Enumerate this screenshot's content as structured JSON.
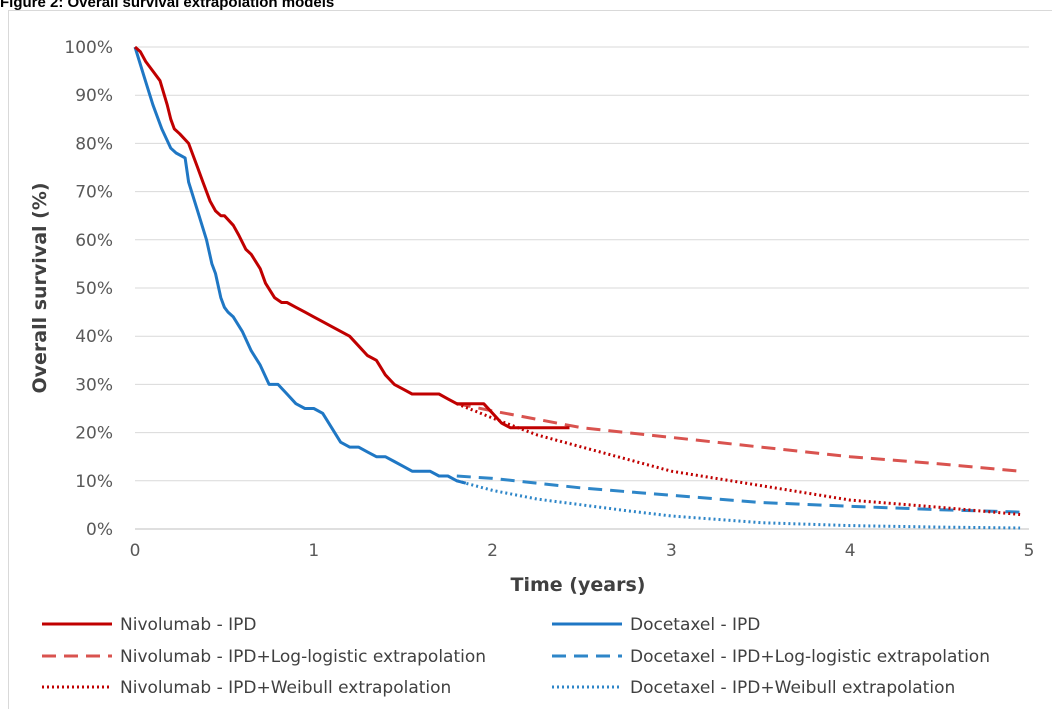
{
  "figure": {
    "caption": "Figure 2: Overall survival extrapolation models"
  },
  "colors": {
    "nivolumab": "#c00000",
    "nivolumab_extrap": "#d9534f",
    "docetaxel": "#1f77c4",
    "docetaxel_extrap": "#2e86c8",
    "grid": "#d9d9d9",
    "axis_text": "#595959"
  },
  "chart_data": {
    "type": "line",
    "title": "",
    "xlabel": "Time (years)",
    "ylabel": "Overall survival (%)",
    "xlim": [
      0,
      5
    ],
    "ylim": [
      0,
      100
    ],
    "x_ticks": [
      "0",
      "1",
      "2",
      "3",
      "4",
      "5"
    ],
    "y_ticks": [
      "0%",
      "10%",
      "20%",
      "30%",
      "40%",
      "50%",
      "60%",
      "70%",
      "80%",
      "90%",
      "100%"
    ],
    "grid": "horizontal",
    "legend_position": "bottom",
    "series": [
      {
        "name": "Nivolumab - IPD",
        "style": "solid",
        "color": "#c00000",
        "x": [
          0,
          0.03,
          0.06,
          0.1,
          0.14,
          0.18,
          0.2,
          0.22,
          0.25,
          0.3,
          0.35,
          0.38,
          0.42,
          0.45,
          0.48,
          0.5,
          0.55,
          0.58,
          0.62,
          0.65,
          0.7,
          0.73,
          0.78,
          0.82,
          0.85,
          0.9,
          0.95,
          1.0,
          1.05,
          1.1,
          1.2,
          1.25,
          1.3,
          1.35,
          1.4,
          1.45,
          1.5,
          1.55,
          1.6,
          1.7,
          1.75,
          1.8,
          1.85,
          1.9,
          1.95,
          2.0,
          2.05,
          2.1,
          2.2,
          2.3,
          2.43
        ],
        "y": [
          100,
          99,
          97,
          95,
          93,
          88,
          85,
          83,
          82,
          80,
          75,
          72,
          68,
          66,
          65,
          65,
          63,
          61,
          58,
          57,
          54,
          51,
          48,
          47,
          47,
          46,
          45,
          44,
          43,
          42,
          40,
          38,
          36,
          35,
          32,
          30,
          29,
          28,
          28,
          28,
          27,
          26,
          26,
          26,
          26,
          24,
          22,
          21,
          21,
          21,
          21
        ]
      },
      {
        "name": "Docetaxel - IPD",
        "style": "solid",
        "color": "#1f77c4",
        "x": [
          0,
          0.05,
          0.1,
          0.15,
          0.2,
          0.23,
          0.28,
          0.3,
          0.35,
          0.4,
          0.43,
          0.45,
          0.48,
          0.5,
          0.52,
          0.55,
          0.6,
          0.65,
          0.7,
          0.75,
          0.8,
          0.85,
          0.9,
          0.95,
          1.0,
          1.05,
          1.1,
          1.15,
          1.2,
          1.25,
          1.3,
          1.35,
          1.4,
          1.45,
          1.5,
          1.55,
          1.6,
          1.65,
          1.7,
          1.75,
          1.8,
          1.85
        ],
        "y": [
          100,
          94,
          88,
          83,
          79,
          78,
          77,
          72,
          66,
          60,
          55,
          53,
          48,
          46,
          45,
          44,
          41,
          37,
          34,
          30,
          30,
          28,
          26,
          25,
          25,
          24,
          21,
          18,
          17,
          17,
          16,
          15,
          15,
          14,
          13,
          12,
          12,
          12,
          11,
          11,
          10,
          9.5
        ]
      },
      {
        "name": "Nivolumab - IPD+Log-logistic extrapolation",
        "style": "dashed",
        "color": "#d9534f",
        "x": [
          1.8,
          2.0,
          2.5,
          3.0,
          3.5,
          4.0,
          4.5,
          4.95
        ],
        "y": [
          26,
          24.5,
          21,
          19,
          17,
          15,
          13.5,
          12
        ]
      },
      {
        "name": "Docetaxel - IPD+Log-logistic extrapolation",
        "style": "dashed",
        "color": "#2e86c8",
        "x": [
          1.8,
          2.0,
          2.5,
          3.0,
          3.5,
          4.0,
          4.5,
          4.95
        ],
        "y": [
          11,
          10.5,
          8.5,
          7,
          5.5,
          4.7,
          4,
          3.5
        ]
      },
      {
        "name": "Nivolumab - IPD+Weibull extrapolation",
        "style": "dotted",
        "color": "#c00000",
        "x": [
          1.8,
          2.0,
          2.25,
          2.5,
          3.0,
          3.5,
          4.0,
          4.5,
          4.95
        ],
        "y": [
          26,
          23,
          19.5,
          17,
          12,
          9,
          6,
          4.5,
          3
        ]
      },
      {
        "name": "Docetaxel - IPD+Weibull extrapolation",
        "style": "dotted",
        "color": "#2e86c8",
        "x": [
          1.8,
          2.0,
          2.25,
          2.5,
          2.75,
          3.0,
          3.5,
          4.0,
          4.5,
          4.95
        ],
        "y": [
          10,
          8,
          6.2,
          5,
          3.8,
          2.7,
          1.3,
          0.7,
          0.4,
          0.2
        ]
      }
    ]
  }
}
